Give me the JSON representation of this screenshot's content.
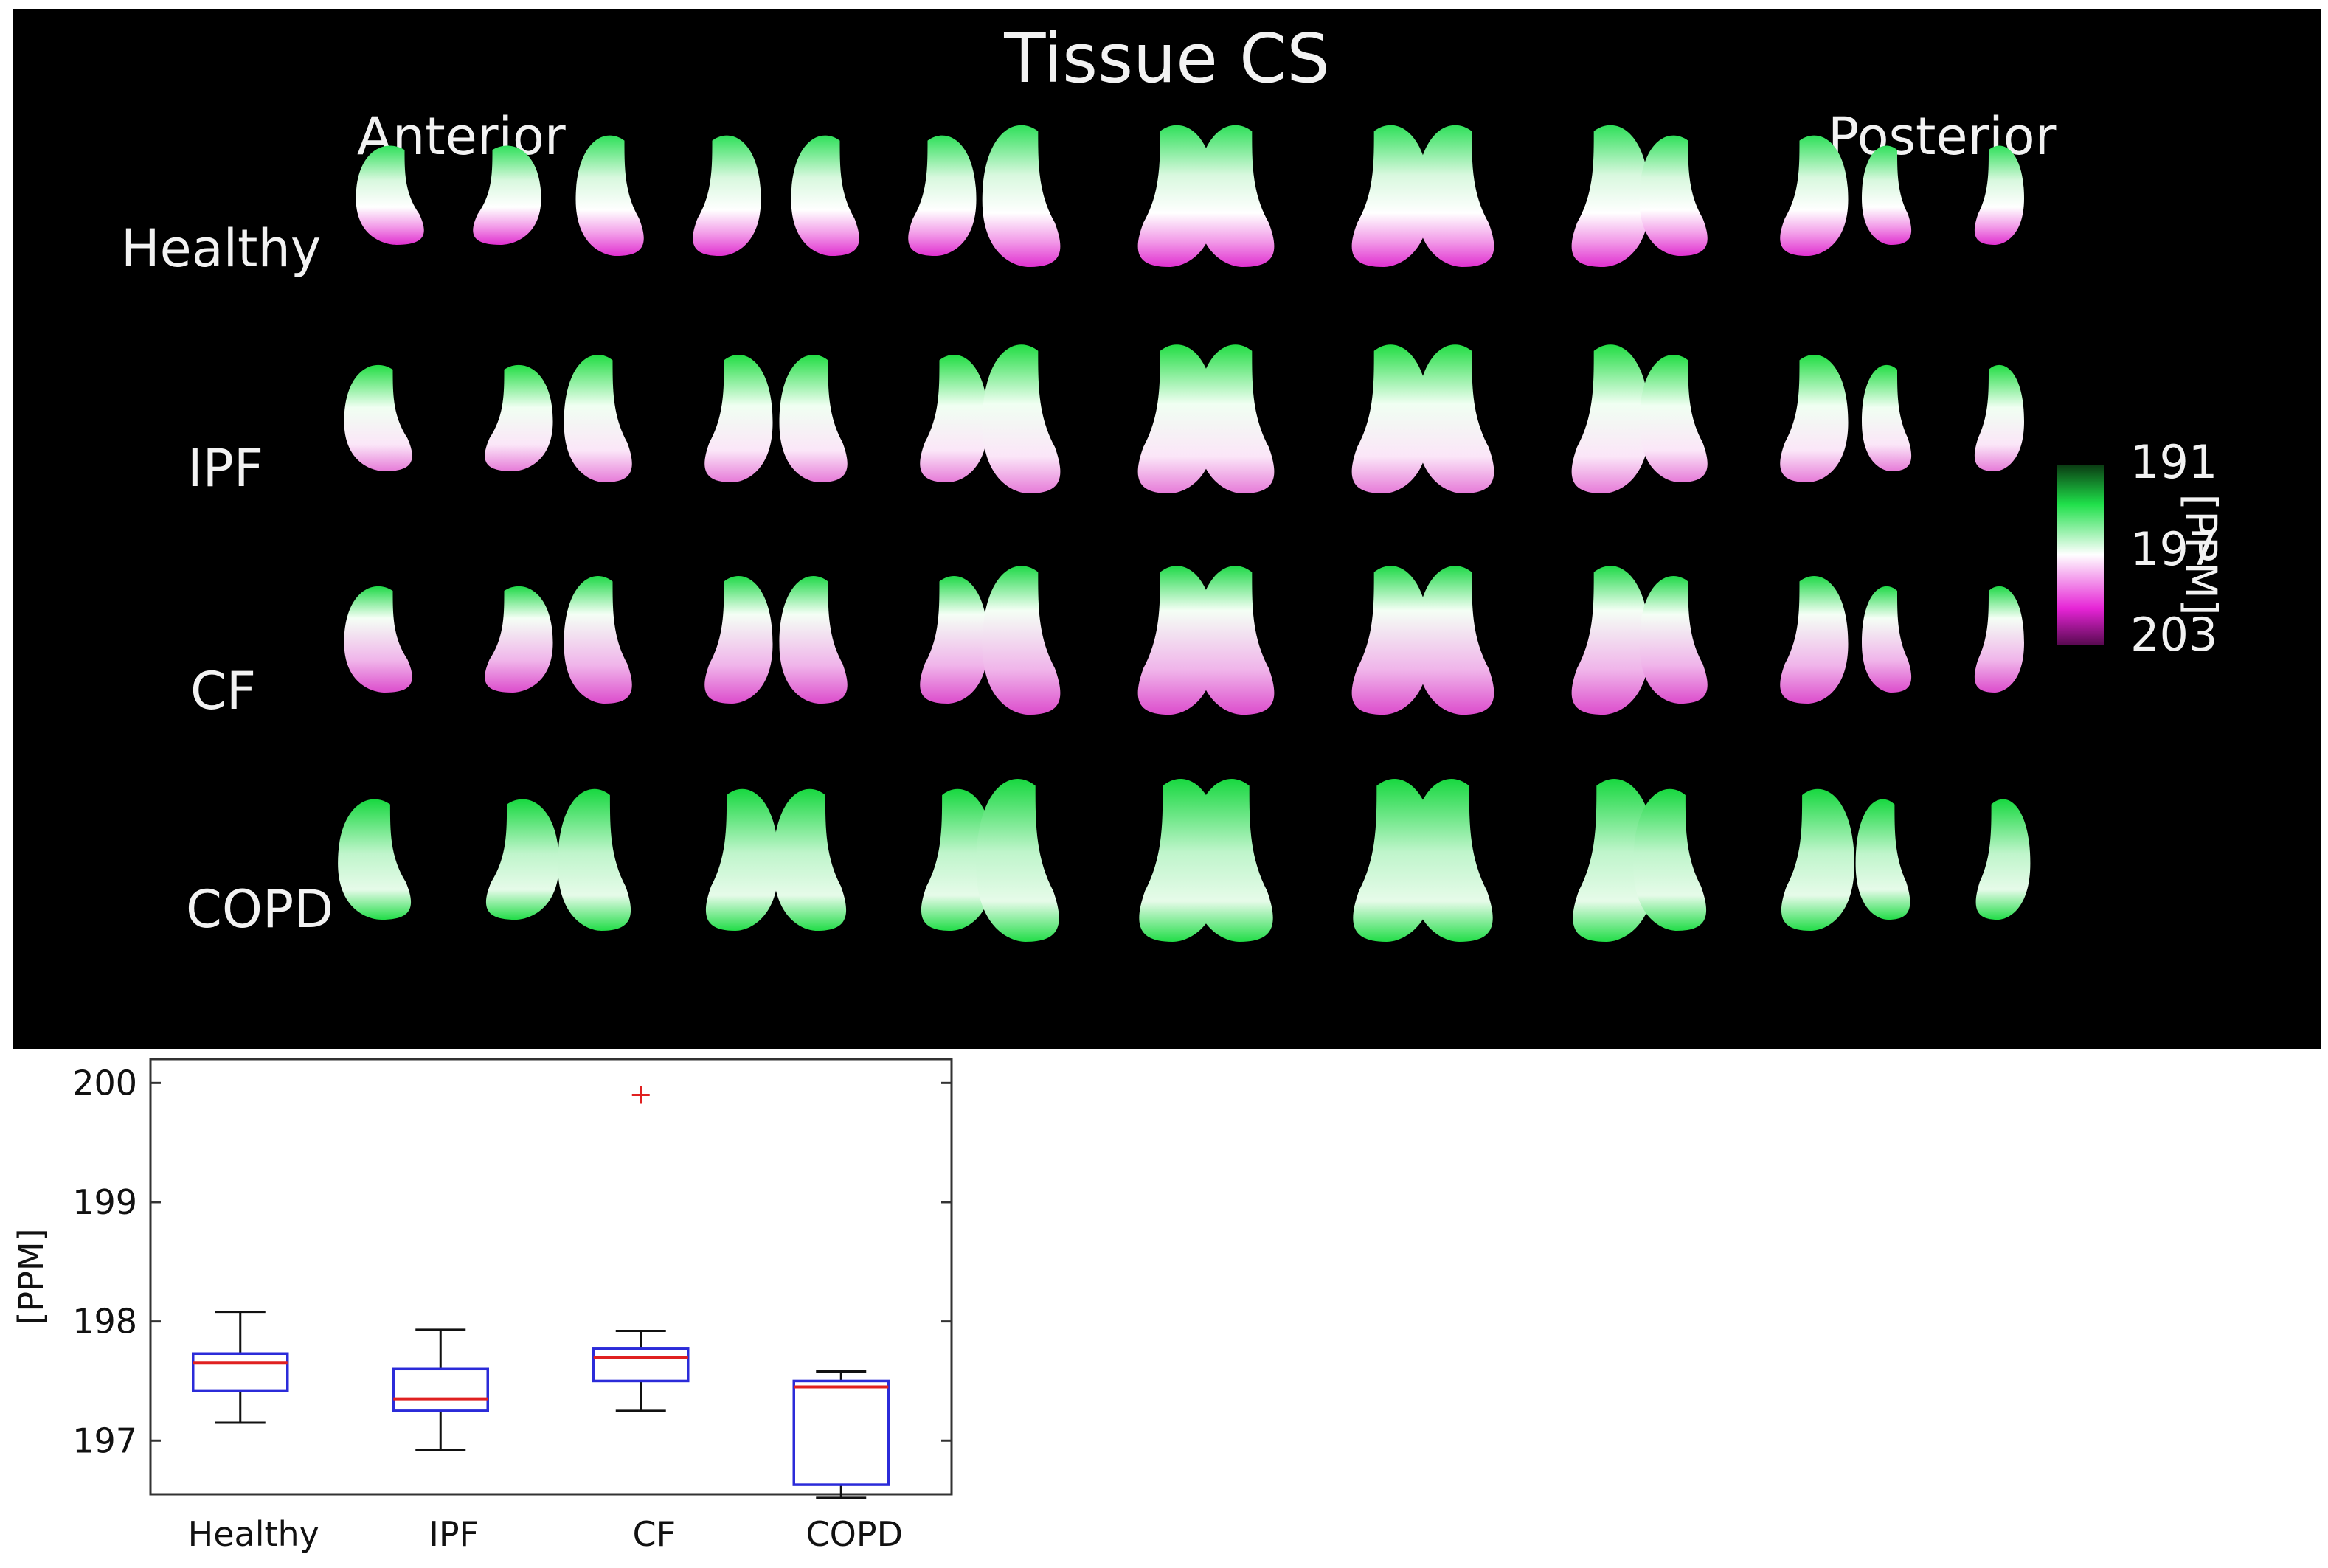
{
  "figure": {
    "title": "Tissue CS",
    "direction_start": "Anterior",
    "direction_end": "Posterior",
    "rows": [
      "Healthy",
      "IPF",
      "CF",
      "COPD"
    ],
    "colorbar": {
      "ticks": [
        "191",
        "197",
        "203"
      ],
      "unit": "[PPM]",
      "colors": {
        "low": "#1fe04a",
        "mid": "#ffffff",
        "high": "#e624d6",
        "end": "#5a0a52"
      }
    }
  },
  "chart_data": {
    "type": "box",
    "categories": [
      "Healthy",
      "IPF",
      "CF",
      "COPD"
    ],
    "ylabel": "[PPM]",
    "xlabel": "",
    "yticks": [
      "197",
      "198",
      "199",
      "200"
    ],
    "ylim": [
      196.55,
      200.2
    ],
    "boxes": [
      {
        "whisker_low": 197.15,
        "q1": 197.42,
        "median": 197.65,
        "q3": 197.73,
        "whisker_high": 198.08,
        "outliers": []
      },
      {
        "whisker_low": 196.92,
        "q1": 197.25,
        "median": 197.35,
        "q3": 197.6,
        "whisker_high": 197.93,
        "outliers": []
      },
      {
        "whisker_low": 197.25,
        "q1": 197.5,
        "median": 197.7,
        "q3": 197.77,
        "whisker_high": 197.92,
        "outliers": [
          199.9
        ]
      },
      {
        "whisker_low": 196.52,
        "q1": 196.63,
        "median": 197.45,
        "q3": 197.5,
        "whisker_high": 197.58,
        "outliers": []
      }
    ],
    "colors": {
      "box": "#2b2bd9",
      "median": "#e02020",
      "whisker": "#111111",
      "outlier": "#e02020"
    },
    "grid": false
  }
}
